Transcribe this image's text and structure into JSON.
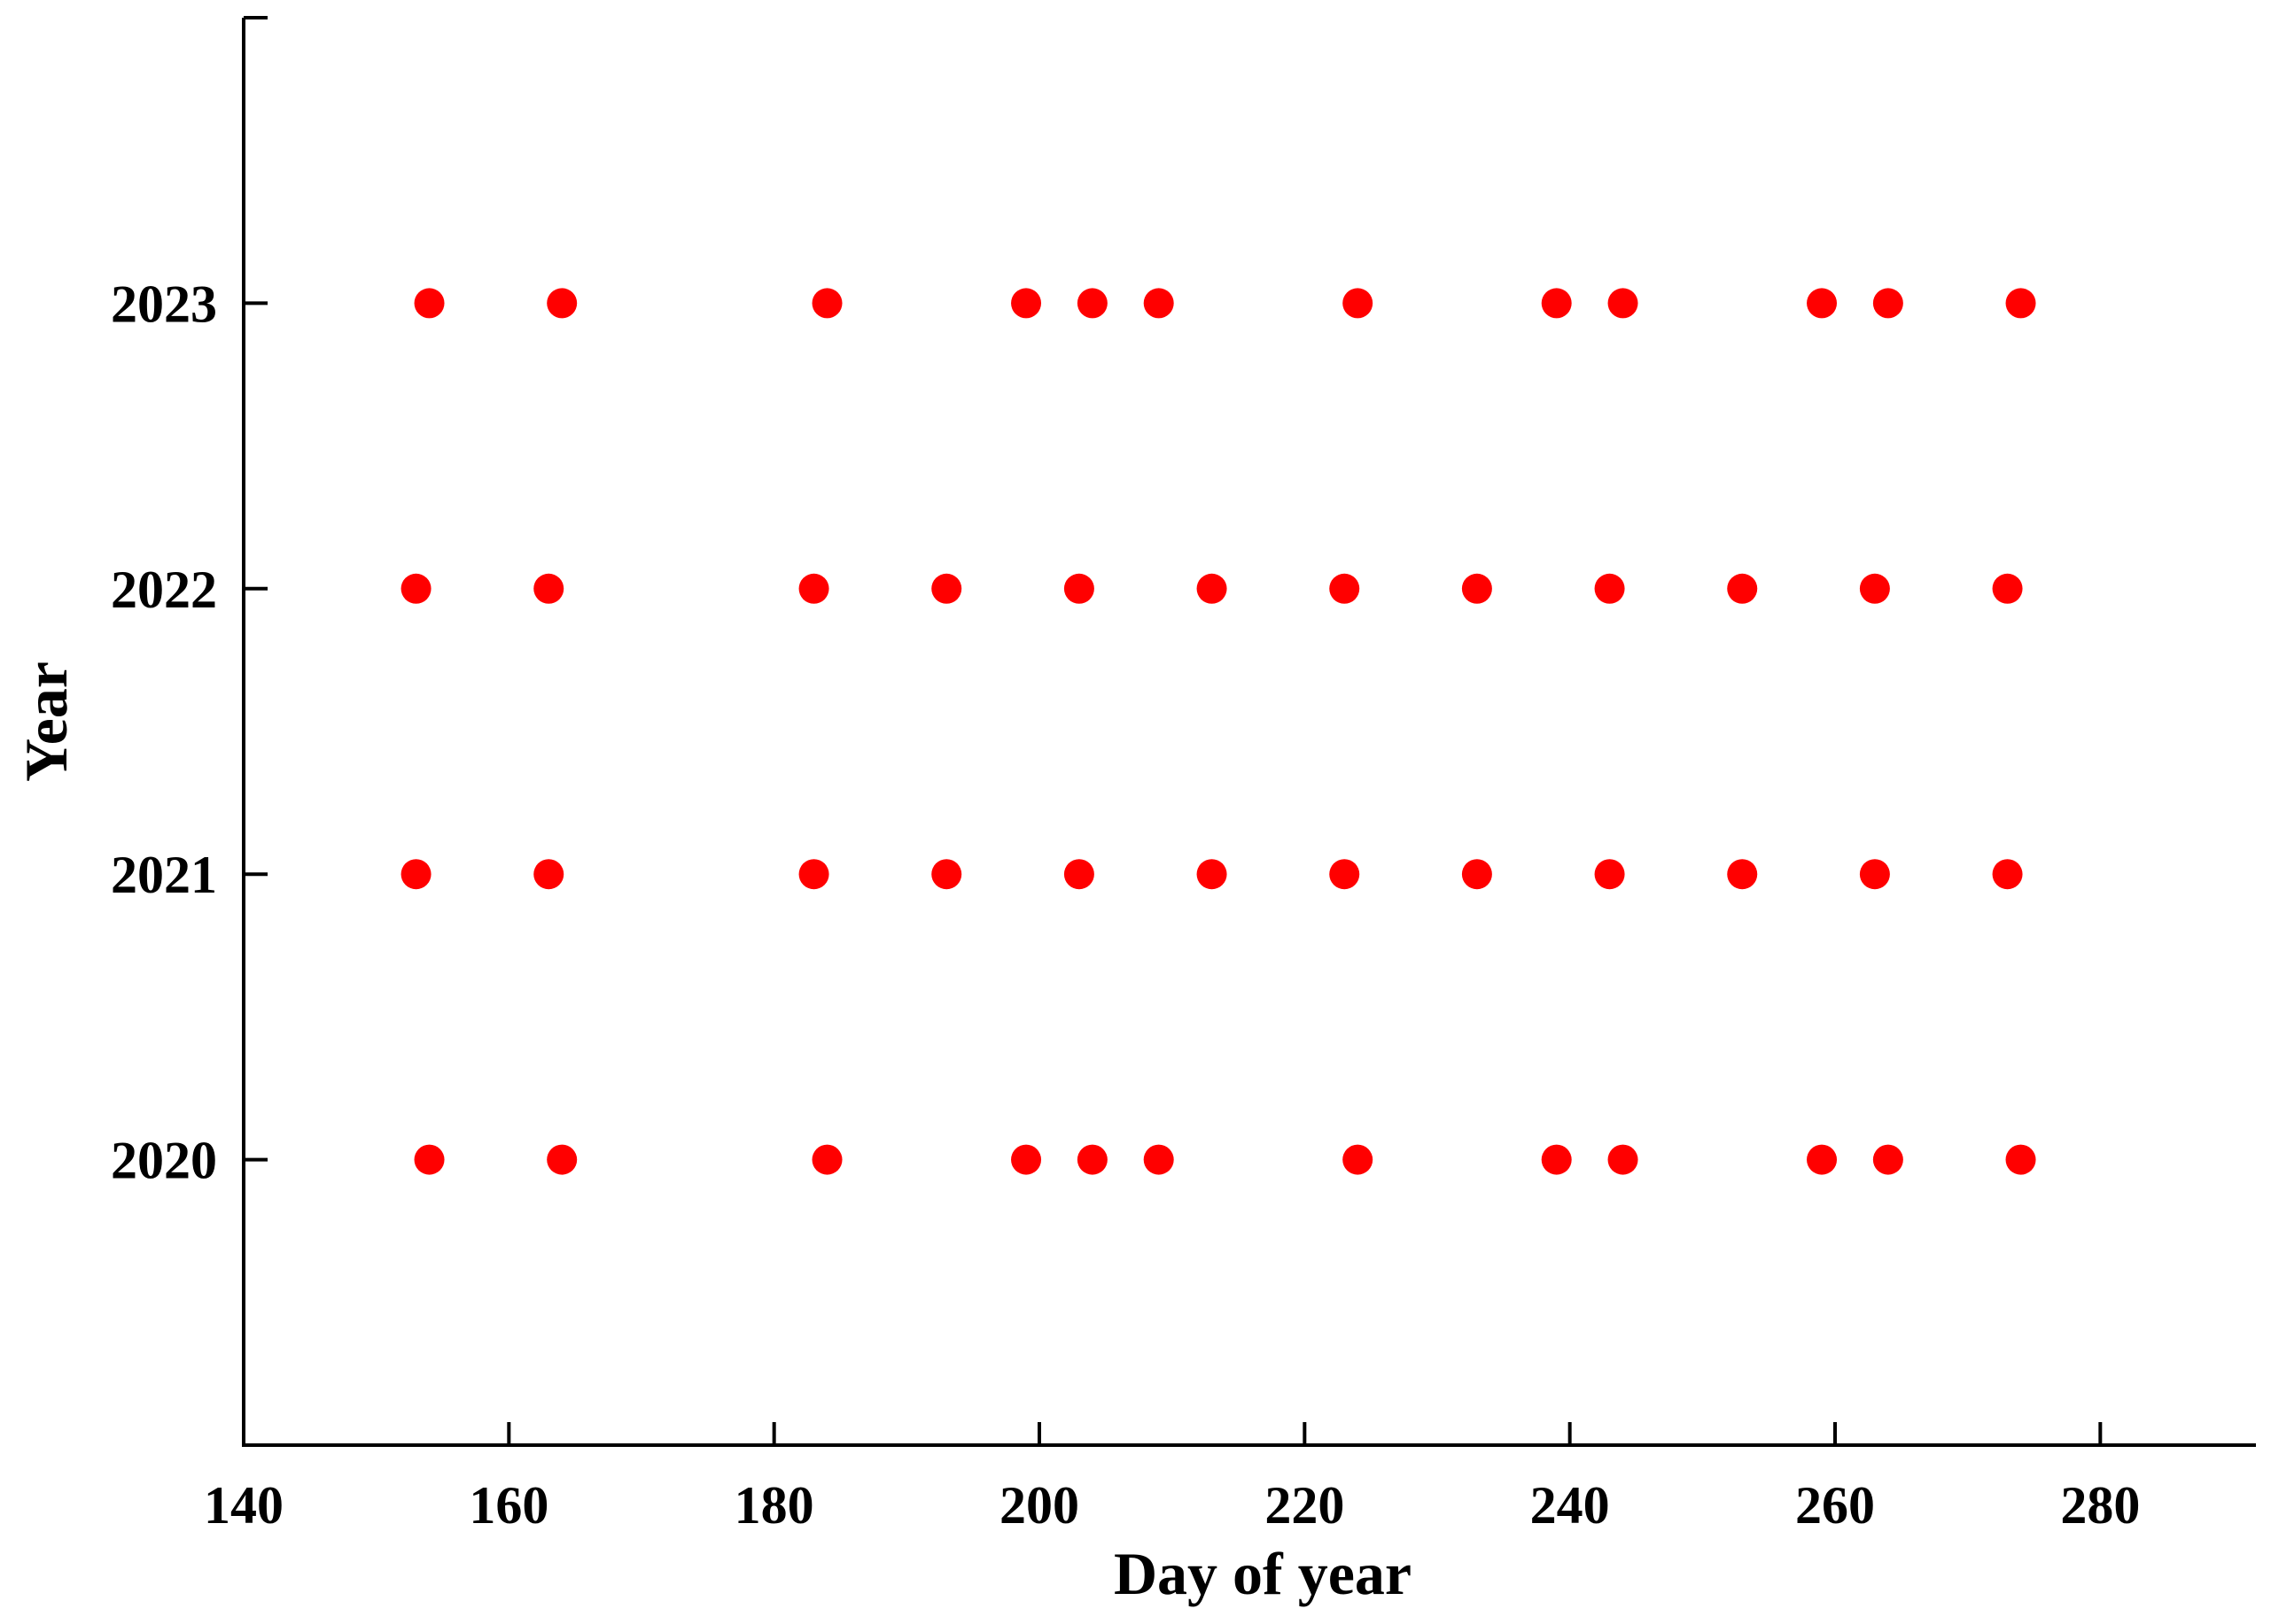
{
  "chart_data": {
    "type": "scatter",
    "xlabel": "Day of year",
    "ylabel": "Year",
    "xlim": [
      140,
      290
    ],
    "ylim": [
      2019,
      2024
    ],
    "x_ticks": [
      140,
      160,
      180,
      200,
      220,
      240,
      260,
      280
    ],
    "y_ticks": [
      2020,
      2021,
      2022,
      2023
    ],
    "grid": false,
    "marker_color": "#ff0000",
    "points": [
      {
        "year": 2023,
        "days": [
          154,
          164,
          184,
          199,
          204,
          209,
          224,
          239,
          244,
          259,
          264,
          274
        ]
      },
      {
        "year": 2022,
        "days": [
          153,
          163,
          183,
          193,
          203,
          213,
          223,
          233,
          243,
          253,
          263,
          273
        ]
      },
      {
        "year": 2021,
        "days": [
          153,
          163,
          183,
          193,
          203,
          213,
          223,
          233,
          243,
          253,
          263,
          273
        ]
      },
      {
        "year": 2020,
        "days": [
          154,
          164,
          184,
          199,
          204,
          209,
          224,
          239,
          244,
          259,
          264,
          274
        ]
      }
    ]
  }
}
